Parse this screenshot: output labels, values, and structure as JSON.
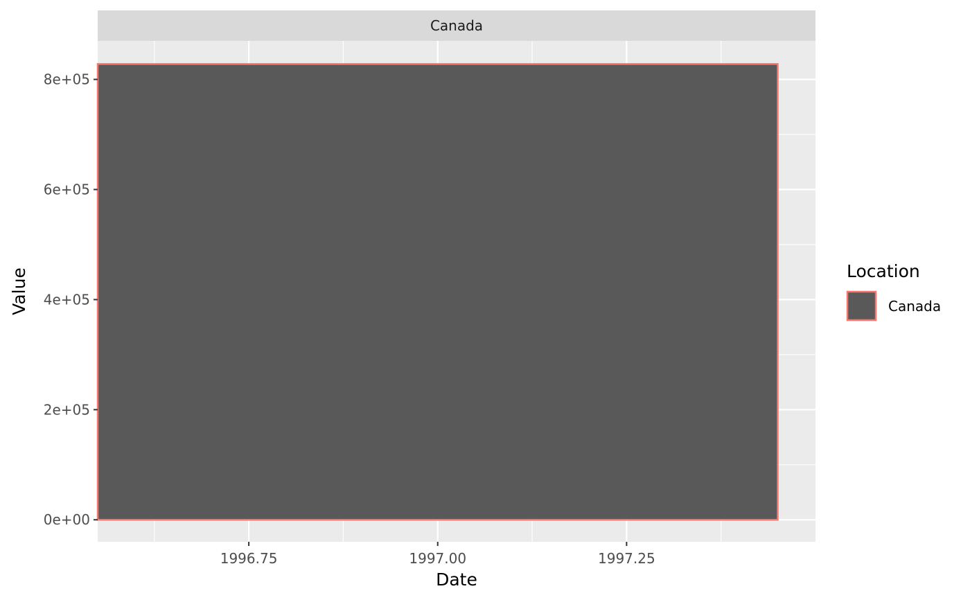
{
  "chart_data": {
    "type": "bar",
    "facet": "Canada",
    "xlabel": "Date",
    "ylabel": "Value",
    "x_ticks": [
      "1996.75",
      "1997.00",
      "1997.25"
    ],
    "x_tick_values": [
      1996.75,
      1997.0,
      1997.25
    ],
    "y_ticks": [
      "0e+00",
      "2e+05",
      "4e+05",
      "6e+05",
      "8e+05"
    ],
    "y_tick_values": [
      0,
      200000,
      400000,
      600000,
      800000
    ],
    "xlim": [
      1996.55,
      1997.5
    ],
    "ylim": [
      -40000,
      870000
    ],
    "legend": {
      "title": "Location",
      "position": "right",
      "entries": [
        "Canada"
      ]
    },
    "series": [
      {
        "name": "Canada",
        "bars": [
          {
            "x": 1997.0,
            "width": 0.9,
            "value": 828000
          }
        ]
      }
    ],
    "colors": {
      "panel_bg": "#ebebeb",
      "strip_bg": "#d9d9d9",
      "grid": "#ffffff",
      "bar_fill": "#595959",
      "bar_outline": "#f8766d"
    },
    "grid": true
  }
}
